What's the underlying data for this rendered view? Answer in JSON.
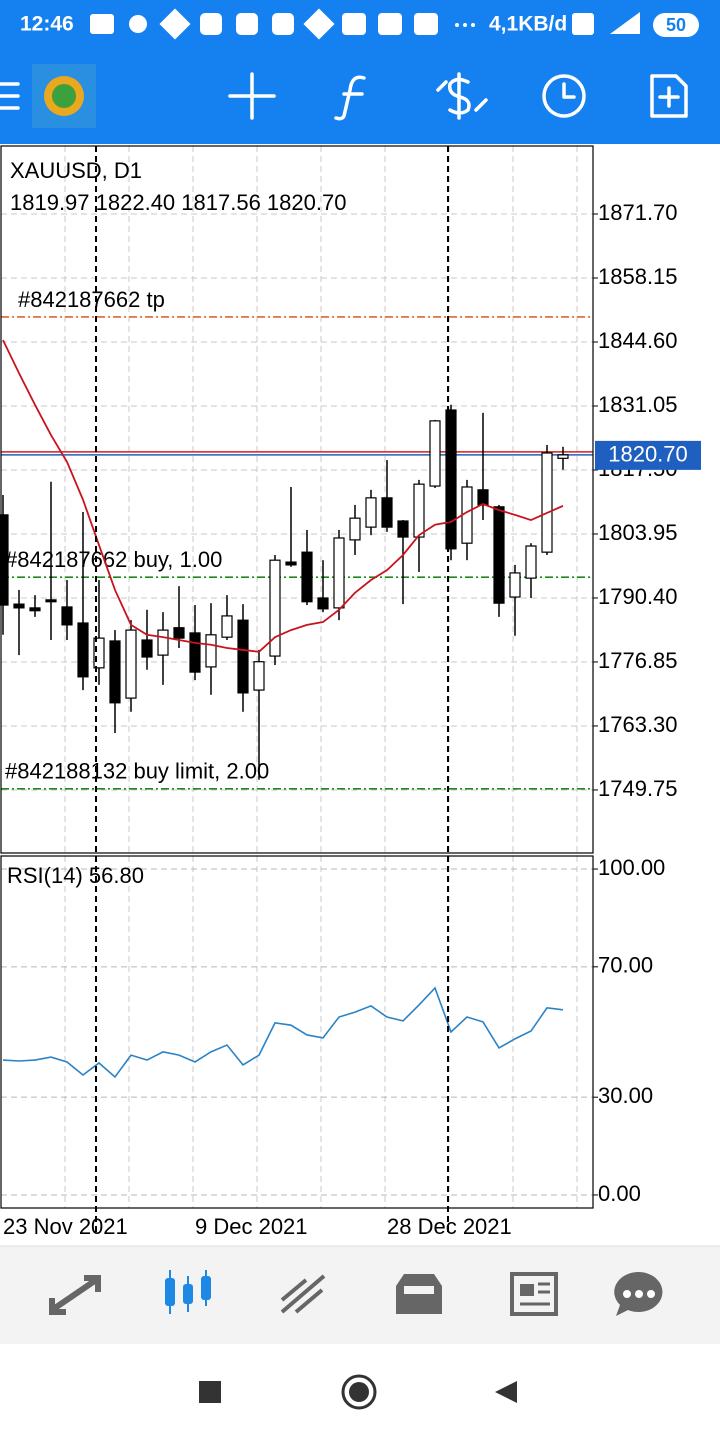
{
  "status_bar": {
    "time": "12:46",
    "network_speed": "4,1KB/d",
    "battery": "50"
  },
  "chart_data": [
    {
      "type": "candlestick",
      "title": "XAUUSD, D1",
      "subtitle": "1819.97 1822.40 1817.56 1820.70",
      "categories": [
        "23 Nov 2021",
        null,
        null,
        null,
        null,
        null,
        null,
        null,
        null,
        null,
        null,
        null,
        "9 Dec 2021",
        null,
        null,
        null,
        null,
        null,
        null,
        null,
        null,
        null,
        null,
        null,
        "28 Dec 2021",
        null,
        null,
        null,
        null,
        null,
        null,
        null,
        null,
        null,
        null,
        null
      ],
      "open": [
        1808.0,
        1789.1,
        1788.3,
        1790.0,
        1788.5,
        1785.1,
        1775.6,
        1781.3,
        1769.2,
        1781.5,
        1778.3,
        1784.1,
        1783.0,
        1775.8,
        1782.1,
        1785.7,
        1770.9,
        1778.1,
        1798.0,
        1800.1,
        1790.4,
        1788.3,
        1802.7,
        1805.4,
        1811.6,
        1806.7,
        1803.3,
        1814.1,
        1830.2,
        1802.0,
        1813.3,
        1809.7,
        1790.6,
        1794.6,
        1800.1,
        1819.97
      ],
      "high": [
        1812.2,
        1792.1,
        1791.0,
        1815.0,
        1794.2,
        1808.6,
        1794.2,
        1783.6,
        1785.7,
        1787.9,
        1787.4,
        1792.9,
        1788.9,
        1789.3,
        1791.0,
        1789.1,
        1779.4,
        1799.5,
        1813.9,
        1804.8,
        1798.4,
        1804.8,
        1810.1,
        1813.3,
        1819.6,
        1806.9,
        1815.4,
        1828.1,
        1831.3,
        1815.4,
        1829.6,
        1810.1,
        1797.4,
        1802.0,
        1822.8,
        1822.4
      ],
      "low": [
        1782.6,
        1778.3,
        1786.4,
        1781.5,
        1781.5,
        1770.9,
        1772.0,
        1761.8,
        1766.3,
        1775.2,
        1772.0,
        1779.8,
        1773.0,
        1769.9,
        1781.5,
        1766.3,
        1751.9,
        1776.2,
        1797.0,
        1788.9,
        1787.4,
        1785.7,
        1799.5,
        1803.7,
        1804.4,
        1789.1,
        1795.9,
        1813.7,
        1798.4,
        1798.4,
        1806.9,
        1786.4,
        1782.4,
        1790.4,
        1799.5,
        1817.56
      ],
      "close": [
        1788.9,
        1788.3,
        1787.7,
        1789.6,
        1784.7,
        1773.7,
        1781.9,
        1768.2,
        1783.6,
        1777.9,
        1783.6,
        1781.9,
        1774.7,
        1782.6,
        1786.6,
        1770.3,
        1776.9,
        1798.4,
        1797.4,
        1789.6,
        1788.1,
        1803.1,
        1807.3,
        1811.6,
        1805.4,
        1803.3,
        1814.5,
        1827.9,
        1800.8,
        1813.9,
        1810.1,
        1789.3,
        1795.7,
        1801.4,
        1821.1,
        1820.7
      ],
      "up_color": "#ffffff",
      "down_color": "#000000",
      "ma": {
        "color": "#c8141e",
        "values": [
          1845.0,
          1838.0,
          1831.3,
          1824.9,
          1819.2,
          1811.2,
          1801.6,
          1792.1,
          1784.7,
          1782.6,
          1782.1,
          1781.5,
          1780.9,
          1780.5,
          1779.8,
          1779.4,
          1779.0,
          1782.1,
          1783.6,
          1784.7,
          1785.3,
          1787.9,
          1791.5,
          1794.2,
          1796.3,
          1799.5,
          1803.7,
          1805.9,
          1806.5,
          1808.6,
          1810.3,
          1809.0,
          1808.0,
          1806.9,
          1808.4,
          1809.9
        ]
      },
      "current_price": {
        "value": 1820.7,
        "label": "1820.70",
        "color": "#1f5fbf"
      },
      "levels": [
        {
          "label": "#842187662 tp",
          "value": 1849.9,
          "color": "#e0662a"
        },
        {
          "label": "#842187662 buy, 1.00",
          "value": 1794.8,
          "color": "#1e8a1e"
        },
        {
          "label": "#842188132 buy limit, 2.00",
          "value": 1750.0,
          "color": "#1e8a1e"
        }
      ],
      "ylim": [
        1736.4,
        1886.1
      ],
      "yticks": [
        {
          "value": 1871.7,
          "label": "1871.70"
        },
        {
          "value": 1858.15,
          "label": "1858.15"
        },
        {
          "value": 1844.6,
          "label": "1844.60"
        },
        {
          "value": 1831.05,
          "label": "1831.05"
        },
        {
          "value": 1817.5,
          "label": "1817.50"
        },
        {
          "value": 1803.95,
          "label": "1803.95"
        },
        {
          "value": 1790.4,
          "label": "1790.40"
        },
        {
          "value": 1776.85,
          "label": "1776.85"
        },
        {
          "value": 1763.3,
          "label": "1763.30"
        },
        {
          "value": 1749.75,
          "label": "1749.75"
        }
      ],
      "grid": true
    },
    {
      "type": "line",
      "title": "RSI(14) 56.80",
      "color": "#2b83c6",
      "values": [
        41.4,
        41.1,
        41.4,
        42.3,
        40.8,
        36.8,
        40.5,
        36.2,
        42.9,
        41.4,
        43.9,
        42.9,
        40.8,
        43.9,
        46.0,
        39.9,
        42.9,
        52.8,
        52.1,
        49.1,
        48.2,
        54.6,
        56.1,
        58.0,
        54.6,
        53.4,
        58.3,
        63.5,
        50.0,
        54.6,
        53.1,
        45.1,
        47.9,
        50.3,
        57.4,
        56.8
      ],
      "ylim": [
        -4,
        104
      ],
      "yticks": [
        {
          "value": 100,
          "label": "100.00"
        },
        {
          "value": 70,
          "label": "70.00"
        },
        {
          "value": 30,
          "label": "30.00"
        },
        {
          "value": 0,
          "label": "0.00"
        }
      ],
      "grid": true
    }
  ]
}
